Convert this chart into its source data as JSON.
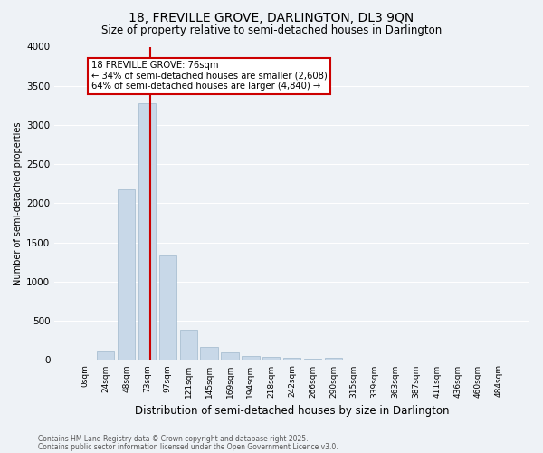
{
  "title1": "18, FREVILLE GROVE, DARLINGTON, DL3 9QN",
  "title2": "Size of property relative to semi-detached houses in Darlington",
  "xlabel": "Distribution of semi-detached houses by size in Darlington",
  "ylabel": "Number of semi-detached properties",
  "bin_labels": [
    "0sqm",
    "24sqm",
    "48sqm",
    "73sqm",
    "97sqm",
    "121sqm",
    "145sqm",
    "169sqm",
    "194sqm",
    "218sqm",
    "242sqm",
    "266sqm",
    "290sqm",
    "315sqm",
    "339sqm",
    "363sqm",
    "387sqm",
    "411sqm",
    "436sqm",
    "460sqm",
    "484sqm"
  ],
  "bin_values": [
    0,
    120,
    2180,
    3280,
    1340,
    390,
    165,
    100,
    55,
    35,
    25,
    15,
    25,
    0,
    0,
    0,
    0,
    0,
    0,
    0,
    0
  ],
  "bar_color": "#c8d8e8",
  "bar_edgecolor": "#a0b8cc",
  "red_line_x": 3.15,
  "annotation_line1": "18 FREVILLE GROVE: 76sqm",
  "annotation_line2": "← 34% of semi-detached houses are smaller (2,608)",
  "annotation_line3": "64% of semi-detached houses are larger (4,840) →",
  "annotation_box_color": "#ffffff",
  "annotation_box_edgecolor": "#cc0000",
  "red_line_color": "#cc0000",
  "ylim": [
    0,
    4000
  ],
  "yticks": [
    0,
    500,
    1000,
    1500,
    2000,
    2500,
    3000,
    3500,
    4000
  ],
  "background_color": "#eef2f6",
  "footer1": "Contains HM Land Registry data © Crown copyright and database right 2025.",
  "footer2": "Contains public sector information licensed under the Open Government Licence v3.0.",
  "grid_color": "#ffffff",
  "title_fontsize": 10,
  "subtitle_fontsize": 8.5,
  "annot_fontsize": 7.2,
  "ylabel_fontsize": 7,
  "xlabel_fontsize": 8.5,
  "tick_fontsize": 6.5,
  "ytick_fontsize": 7.5,
  "footer_fontsize": 5.5
}
